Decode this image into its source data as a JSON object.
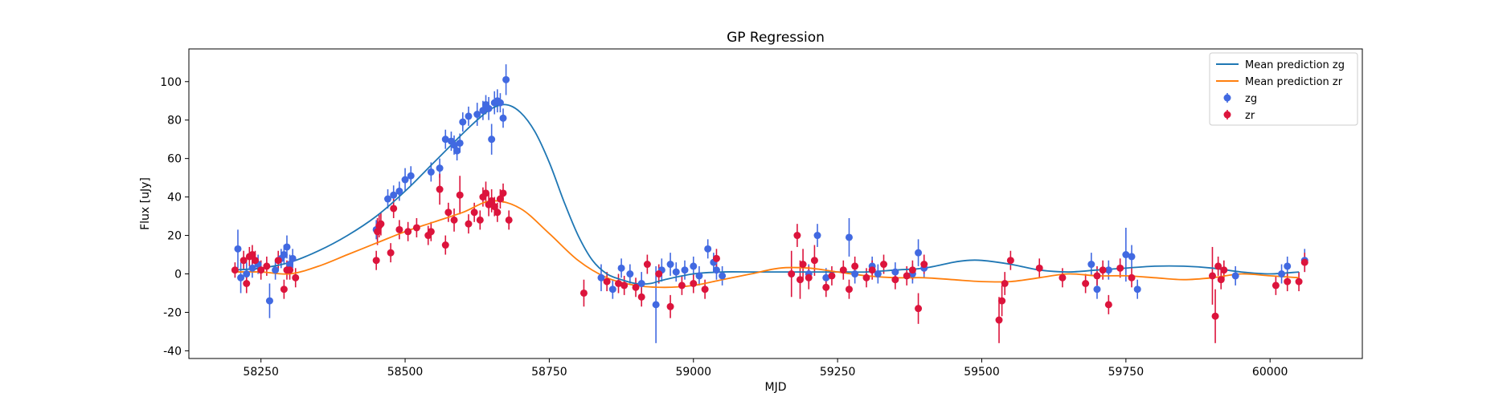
{
  "chart_data": {
    "type": "scatter",
    "title": "GP Regression",
    "xlabel": "MJD",
    "ylabel": "Flux [uJy]",
    "xlim": [
      58125,
      60160
    ],
    "ylim": [
      -44,
      117
    ],
    "xticks": [
      58250,
      58500,
      58750,
      59000,
      59250,
      59500,
      59750,
      60000
    ],
    "yticks": [
      -40,
      -20,
      0,
      20,
      40,
      60,
      80,
      100
    ],
    "grid": false,
    "legend": "top-right",
    "series": [
      {
        "name": "Mean prediction zg",
        "kind": "line",
        "color": "#1f77b4",
        "x": [
          58200,
          58250,
          58300,
          58350,
          58400,
          58450,
          58500,
          58550,
          58600,
          58625,
          58650,
          58675,
          58700,
          58725,
          58750,
          58775,
          58800,
          58825,
          58850,
          58875,
          58900,
          58925,
          58950,
          59000,
          59050,
          59100,
          59150,
          59200,
          59250,
          59300,
          59350,
          59400,
          59450,
          59475,
          59500,
          59550,
          59600,
          59650,
          59700,
          59750,
          59800,
          59850,
          59900,
          59950,
          60000,
          60050
        ],
        "y": [
          2,
          3,
          6,
          12,
          20,
          30,
          43,
          58,
          73,
          80,
          86,
          88,
          84,
          74,
          58,
          38,
          20,
          7,
          0,
          -3,
          -5,
          -5,
          -3,
          0,
          1,
          1,
          1,
          1,
          1,
          1,
          2,
          3,
          6,
          7,
          7,
          5,
          2,
          1,
          2,
          3,
          4,
          4,
          3,
          1,
          0,
          1
        ]
      },
      {
        "name": "Mean prediction zr",
        "kind": "line",
        "color": "#ff7f0e",
        "x": [
          58200,
          58250,
          58300,
          58350,
          58400,
          58450,
          58500,
          58550,
          58600,
          58650,
          58700,
          58750,
          58800,
          58850,
          58900,
          58950,
          59000,
          59050,
          59100,
          59150,
          59200,
          59250,
          59300,
          59350,
          59400,
          59450,
          59500,
          59550,
          59600,
          59650,
          59700,
          59750,
          59800,
          59850,
          59900,
          59950,
          60000,
          60050
        ],
        "y": [
          1,
          1,
          0,
          4,
          10,
          16,
          22,
          27,
          32,
          38,
          34,
          21,
          7,
          -2,
          -6,
          -7,
          -6,
          -3,
          0,
          3,
          3,
          1,
          -1,
          -2,
          -2,
          -3,
          -4,
          -4,
          -2,
          0,
          -1,
          -1,
          -2,
          -3,
          -2,
          0,
          -1,
          -2
        ]
      },
      {
        "name": "zg",
        "kind": "errorbar",
        "color": "#4169e1",
        "x": [
          58210,
          58215,
          58225,
          58235,
          58245,
          58265,
          58275,
          58285,
          58290,
          58295,
          58300,
          58305,
          58450,
          58470,
          58480,
          58490,
          58500,
          58510,
          58545,
          58560,
          58570,
          58580,
          58585,
          58590,
          58595,
          58600,
          58610,
          58625,
          58635,
          58640,
          58645,
          58650,
          58655,
          58660,
          58665,
          58670,
          58675,
          58840,
          58860,
          58875,
          58890,
          58910,
          58935,
          58945,
          58960,
          58970,
          58985,
          59000,
          59010,
          59025,
          59035,
          59040,
          59050,
          59200,
          59215,
          59230,
          59270,
          59280,
          59310,
          59320,
          59350,
          59380,
          59390,
          59400,
          59690,
          59700,
          59720,
          59750,
          59760,
          59770,
          59940,
          60020,
          60030,
          60060
        ],
        "y": [
          13,
          -2,
          0,
          3,
          5,
          -14,
          2,
          8,
          10,
          14,
          5,
          8,
          23,
          39,
          41,
          43,
          49,
          51,
          53,
          55,
          70,
          69,
          67,
          64,
          68,
          79,
          82,
          83,
          85,
          88,
          86,
          70,
          89,
          90,
          89,
          81,
          101,
          -2,
          -8,
          3,
          0,
          -5,
          -16,
          2,
          5,
          1,
          2,
          4,
          -1,
          13,
          6,
          2,
          -1,
          0,
          20,
          -2,
          19,
          0,
          4,
          0,
          1,
          0,
          11,
          3,
          5,
          -8,
          2,
          10,
          9,
          -8,
          -1,
          0,
          4,
          7
        ],
        "err": [
          10,
          8,
          6,
          5,
          5,
          9,
          5,
          5,
          5,
          6,
          5,
          5,
          5,
          5,
          5,
          5,
          6,
          5,
          5,
          5,
          5,
          5,
          5,
          5,
          5,
          5,
          5,
          6,
          5,
          5,
          6,
          8,
          6,
          6,
          5,
          5,
          8,
          7,
          5,
          5,
          5,
          6,
          20,
          6,
          6,
          5,
          5,
          5,
          5,
          5,
          5,
          5,
          5,
          5,
          6,
          5,
          10,
          5,
          5,
          5,
          5,
          5,
          7,
          5,
          6,
          5,
          5,
          14,
          6,
          5,
          5,
          5,
          5,
          6
        ]
      },
      {
        "name": "zr",
        "kind": "errorbar",
        "color": "#dc143c",
        "x": [
          58205,
          58220,
          58225,
          58230,
          58235,
          58240,
          58250,
          58260,
          58280,
          58290,
          58295,
          58300,
          58310,
          58450,
          58452,
          58455,
          58458,
          58475,
          58480,
          58490,
          58505,
          58520,
          58540,
          58545,
          58560,
          58570,
          58575,
          58585,
          58595,
          58610,
          58620,
          58630,
          58635,
          58640,
          58645,
          58650,
          58655,
          58660,
          58665,
          58670,
          58680,
          58810,
          58850,
          58870,
          58880,
          58900,
          58910,
          58920,
          58940,
          58960,
          58980,
          59000,
          59020,
          59040,
          59170,
          59180,
          59185,
          59190,
          59200,
          59210,
          59230,
          59240,
          59260,
          59270,
          59280,
          59300,
          59310,
          59330,
          59350,
          59370,
          59380,
          59390,
          59400,
          59530,
          59535,
          59540,
          59550,
          59600,
          59640,
          59680,
          59700,
          59710,
          59720,
          59740,
          59760,
          59900,
          59905,
          59910,
          59915,
          59920,
          60010,
          60030,
          60050,
          60060
        ],
        "y": [
          2,
          7,
          -5,
          9,
          10,
          7,
          2,
          4,
          7,
          -8,
          2,
          2,
          -2,
          7,
          22,
          25,
          26,
          11,
          34,
          23,
          22,
          24,
          20,
          22,
          44,
          15,
          32,
          28,
          41,
          26,
          32,
          28,
          40,
          42,
          36,
          38,
          35,
          32,
          39,
          42,
          28,
          -10,
          -4,
          -5,
          -6,
          -7,
          -12,
          5,
          0,
          -17,
          -6,
          -5,
          -8,
          8,
          0,
          20,
          -3,
          5,
          -2,
          7,
          -7,
          -1,
          2,
          -8,
          4,
          -2,
          2,
          5,
          -3,
          -1,
          2,
          -18,
          5,
          -24,
          -14,
          -5,
          7,
          3,
          -2,
          -5,
          -1,
          2,
          -16,
          3,
          -2,
          -1,
          -22,
          4,
          -3,
          2,
          -6,
          -4,
          -4,
          6
        ],
        "err": [
          4,
          5,
          5,
          5,
          5,
          5,
          5,
          5,
          5,
          5,
          5,
          5,
          5,
          5,
          7,
          6,
          6,
          5,
          5,
          5,
          5,
          5,
          5,
          5,
          8,
          5,
          5,
          6,
          10,
          5,
          5,
          5,
          5,
          6,
          6,
          6,
          5,
          5,
          5,
          5,
          5,
          7,
          5,
          5,
          5,
          5,
          5,
          5,
          5,
          6,
          5,
          5,
          5,
          5,
          12,
          6,
          10,
          8,
          6,
          8,
          5,
          5,
          5,
          5,
          5,
          5,
          5,
          5,
          5,
          5,
          5,
          8,
          5,
          12,
          8,
          6,
          5,
          5,
          5,
          5,
          5,
          5,
          5,
          5,
          5,
          15,
          14,
          5,
          5,
          5,
          5,
          5,
          5,
          5
        ]
      }
    ]
  }
}
